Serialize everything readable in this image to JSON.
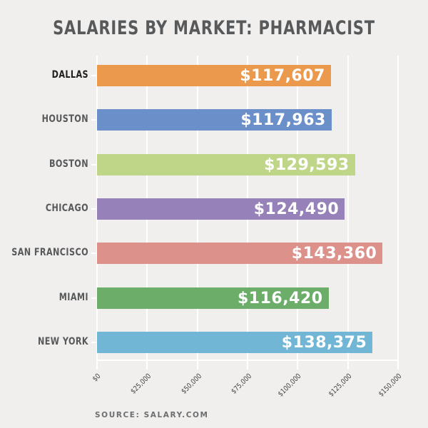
{
  "chart_data": {
    "type": "bar",
    "orientation": "horizontal",
    "title": "SALARIES BY MARKET: PHARMACIST",
    "xlabel": "",
    "ylabel": "",
    "categories": [
      "DALLAS",
      "HOUSTON",
      "BOSTON",
      "CHICAGO",
      "SAN FRANCISCO",
      "MIAMI",
      "NEW YORK"
    ],
    "values": [
      117607,
      117963,
      129593,
      124490,
      143360,
      116420,
      138375
    ],
    "value_labels": [
      "$117,607",
      "$117,963",
      "$129,593",
      "$124,490",
      "$143,360",
      "$116,420",
      "$138,375"
    ],
    "colors": [
      "#eb9a4d",
      "#6b8fc9",
      "#bfd688",
      "#9681b8",
      "#dc918b",
      "#6cad6a",
      "#72b6d6"
    ],
    "highlighted_category": "DALLAS",
    "xlim": [
      0,
      150000
    ],
    "xticks": [
      0,
      25000,
      50000,
      75000,
      100000,
      125000,
      150000
    ],
    "xtick_labels": [
      "$0",
      "$25,000",
      "$50,000",
      "$75,000",
      "$100,000",
      "$125,000",
      "$150,000"
    ],
    "grid": true,
    "legend": null,
    "source": "SOURCE: SALARY.COM"
  },
  "header": {
    "title": "SALARIES BY MARKET: PHARMACIST"
  },
  "footer": {
    "source": "SOURCE: SALARY.COM"
  },
  "colors": {
    "background": "#f0efee",
    "gridline": "#ffffff",
    "title": "#58595b",
    "label": "#58595b",
    "label_highlight": "#1f1f1f"
  }
}
